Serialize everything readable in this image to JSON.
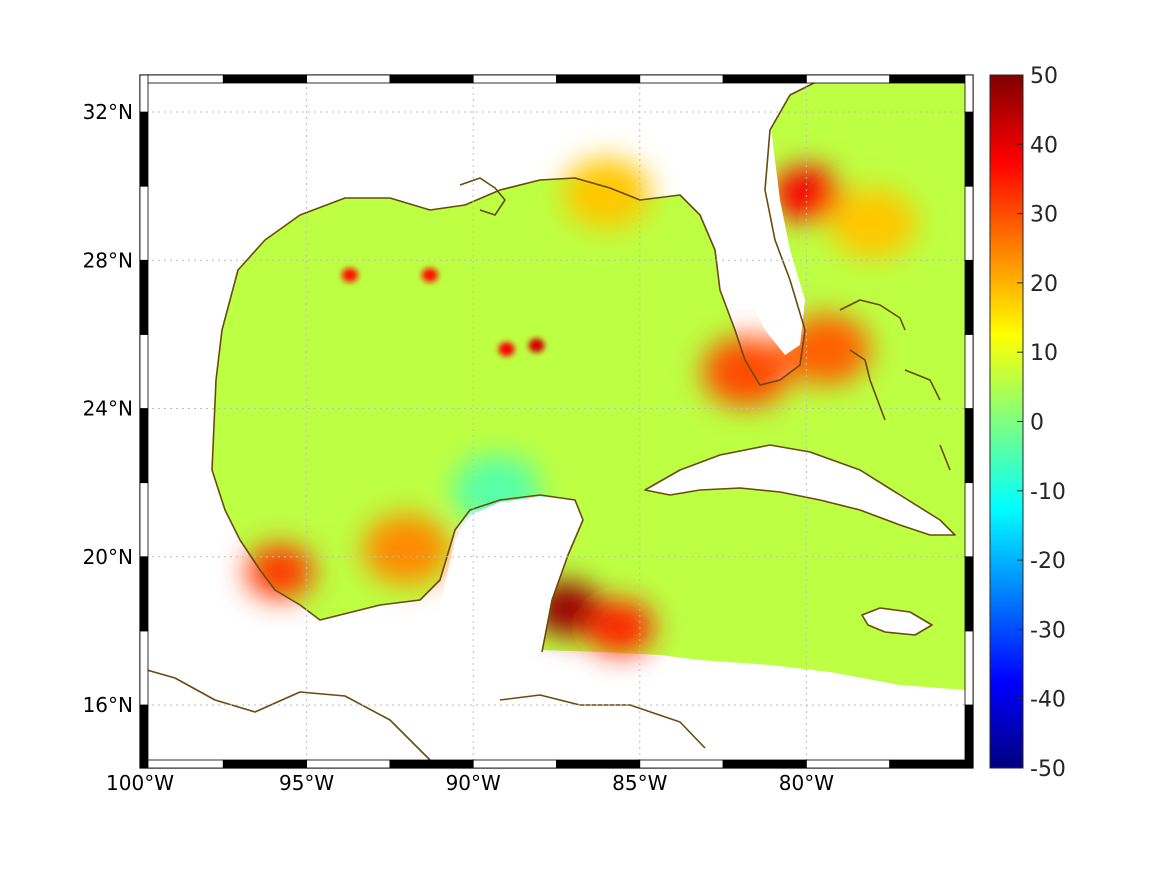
{
  "map": {
    "lon_range": [
      -100,
      -75
    ],
    "lat_range": [
      14.3,
      33
    ],
    "x_ticks": [
      {
        "lon": -100,
        "label": "100°W"
      },
      {
        "lon": -95,
        "label": "95°W"
      },
      {
        "lon": -90,
        "label": "90°W"
      },
      {
        "lon": -85,
        "label": "85°W"
      },
      {
        "lon": -80,
        "label": "80°W"
      }
    ],
    "y_ticks": [
      {
        "lat": 32,
        "label": "32°N"
      },
      {
        "lat": 28,
        "label": "28°N"
      },
      {
        "lat": 24,
        "label": "24°N"
      },
      {
        "lat": 20,
        "label": "20°N"
      },
      {
        "lat": 16,
        "label": "16°N"
      }
    ],
    "grid": "dotted",
    "coastline_color": "#6b4a10",
    "colormap": "jet",
    "color_range": [
      -50,
      50
    ],
    "colorbar_ticks": [
      "50",
      "40",
      "30",
      "20",
      "10",
      "0",
      "-10",
      "-20",
      "-30",
      "-40",
      "-50"
    ],
    "colorbar_placement": "right",
    "background_field_value": 6,
    "features": [
      {
        "name": "sw-gulf-warm",
        "lon": -92.0,
        "lat": 20.2,
        "value": 24
      },
      {
        "name": "west-coast-warm",
        "lon": -95.8,
        "lat": 19.6,
        "value": 32
      },
      {
        "name": "yucatan-channel-hot",
        "lon": -87.2,
        "lat": 18.6,
        "value": 48
      },
      {
        "name": "caribbean-warm",
        "lon": -85.6,
        "lat": 18.1,
        "value": 34
      },
      {
        "name": "campeche-cool",
        "lon": -89.3,
        "lat": 21.8,
        "value": -4
      },
      {
        "name": "gulf-spot-1",
        "lon": -93.7,
        "lat": 27.6,
        "value": 36
      },
      {
        "name": "gulf-spot-2",
        "lon": -91.3,
        "lat": 27.6,
        "value": 36
      },
      {
        "name": "gulf-spot-3",
        "lon": -89.0,
        "lat": 25.6,
        "value": 38
      },
      {
        "name": "gulf-spot-4",
        "lon": -88.1,
        "lat": 25.7,
        "value": 42
      },
      {
        "name": "atlantic-hot",
        "lon": -80.0,
        "lat": 29.8,
        "value": 38
      },
      {
        "name": "atlantic-warm",
        "lon": -78.0,
        "lat": 29.0,
        "value": 18
      },
      {
        "name": "bahamas-warm",
        "lon": -79.4,
        "lat": 25.6,
        "value": 28
      },
      {
        "name": "florida-bay-warm",
        "lon": -81.8,
        "lat": 25.0,
        "value": 30
      },
      {
        "name": "panhandle-warm",
        "lon": -86.0,
        "lat": 29.8,
        "value": 18
      }
    ]
  }
}
